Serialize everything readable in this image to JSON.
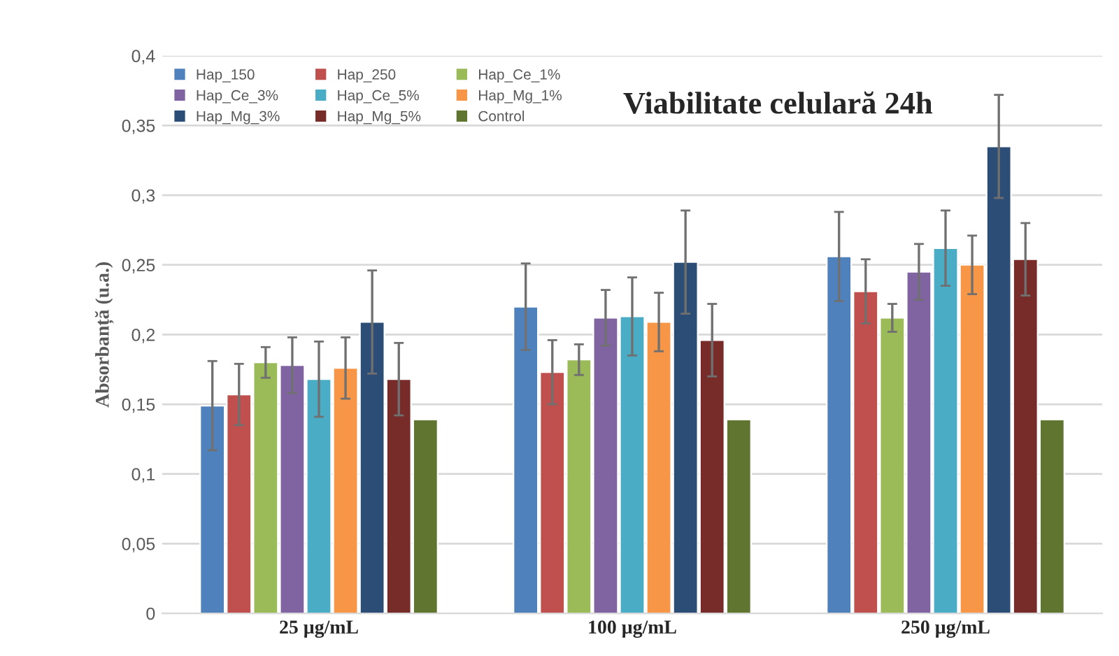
{
  "chart_data": {
    "type": "bar",
    "title": "Viabilitate celulară 24h",
    "ylabel": "Absorbanță (u.a.)",
    "categories": [
      "25 µg/mL",
      "100 µg/mL",
      "250 µg/mL"
    ],
    "series": [
      {
        "name": "Hap_150",
        "color": "#4f81bd",
        "values": [
          0.149,
          0.22,
          0.256
        ],
        "errors": [
          0.032,
          0.031,
          0.032
        ]
      },
      {
        "name": "Hap_250",
        "color": "#c0504d",
        "values": [
          0.157,
          0.173,
          0.231
        ],
        "errors": [
          0.022,
          0.023,
          0.023
        ]
      },
      {
        "name": "Hap_Ce_1%",
        "color": "#9bbb59",
        "values": [
          0.18,
          0.182,
          0.212
        ],
        "errors": [
          0.011,
          0.011,
          0.01
        ]
      },
      {
        "name": "Hap_Ce_3%",
        "color": "#8064a2",
        "values": [
          0.178,
          0.212,
          0.245
        ],
        "errors": [
          0.02,
          0.02,
          0.02
        ]
      },
      {
        "name": "Hap_Ce_5%",
        "color": "#4bacc6",
        "values": [
          0.168,
          0.213,
          0.262
        ],
        "errors": [
          0.027,
          0.028,
          0.027
        ]
      },
      {
        "name": "Hap_Mg_1%",
        "color": "#f79646",
        "values": [
          0.176,
          0.209,
          0.25
        ],
        "errors": [
          0.022,
          0.021,
          0.021
        ]
      },
      {
        "name": "Hap_Mg_3%",
        "color": "#2c4d75",
        "values": [
          0.209,
          0.252,
          0.335
        ],
        "errors": [
          0.037,
          0.037,
          0.037
        ]
      },
      {
        "name": "Hap_Mg_5%",
        "color": "#772c2a",
        "values": [
          0.168,
          0.196,
          0.254
        ],
        "errors": [
          0.026,
          0.026,
          0.026
        ]
      },
      {
        "name": "Control",
        "color": "#5f7530",
        "values": [
          0.139,
          0.139,
          0.139
        ],
        "errors": [
          null,
          null,
          null
        ]
      }
    ],
    "ylim": [
      0,
      0.4
    ],
    "yticks": [
      {
        "value": 0,
        "label": "0"
      },
      {
        "value": 0.05,
        "label": "0,05"
      },
      {
        "value": 0.1,
        "label": "0,1"
      },
      {
        "value": 0.15,
        "label": "0,15"
      },
      {
        "value": 0.2,
        "label": "0,2"
      },
      {
        "value": 0.25,
        "label": "0,25"
      },
      {
        "value": 0.3,
        "label": "0,3"
      },
      {
        "value": 0.35,
        "label": "0,35"
      },
      {
        "value": 0.4,
        "label": "0,4"
      }
    ],
    "grid": "y",
    "legend": "top left"
  }
}
